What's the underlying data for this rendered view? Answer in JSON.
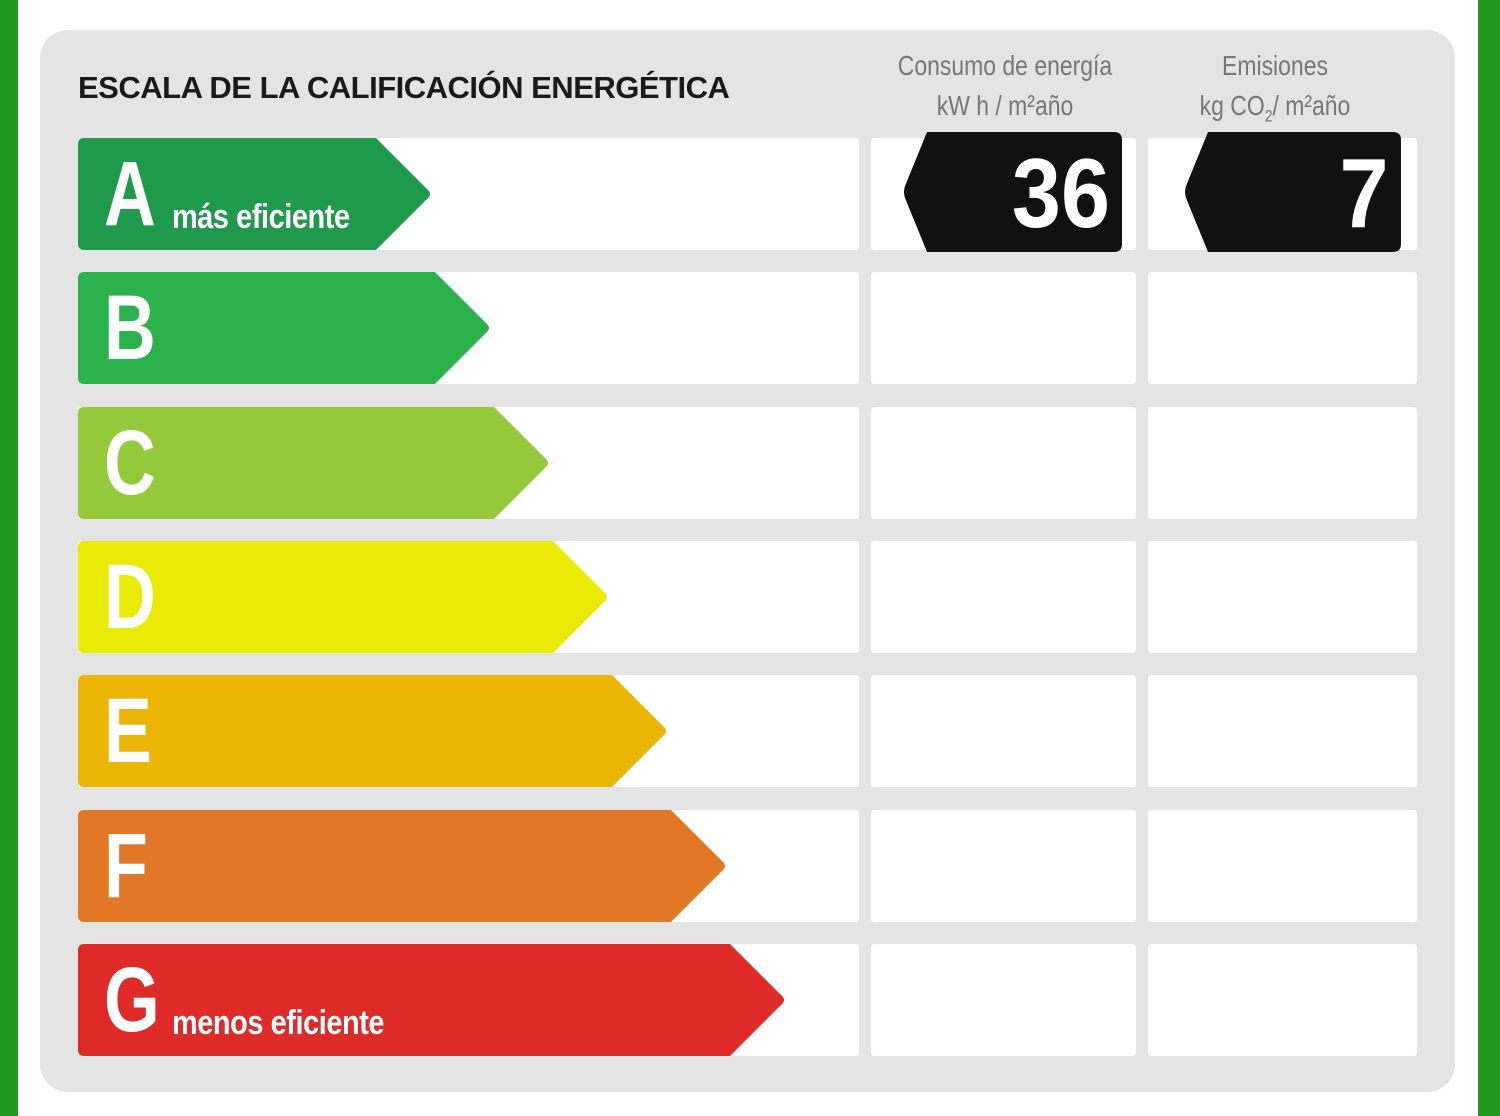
{
  "title": "ESCALA DE LA CALIFICACIÓN ENERGÉTICA",
  "columns": {
    "energy": {
      "line1": "Consumo de energía",
      "line2": "kW h / m²año"
    },
    "emissions": {
      "line1": "Emisiones",
      "line2_pre": "kg CO",
      "line2_sub": "2",
      "line2_post": "/ m²año"
    }
  },
  "ratings": [
    {
      "letter": "A",
      "sublabel": "más eficiente",
      "color": "#1f9a4d"
    },
    {
      "letter": "B",
      "sublabel": "",
      "color": "#2bb24c"
    },
    {
      "letter": "C",
      "sublabel": "",
      "color": "#94c93b"
    },
    {
      "letter": "D",
      "sublabel": "",
      "color": "#e9ea05"
    },
    {
      "letter": "E",
      "sublabel": "",
      "color": "#ebb505"
    },
    {
      "letter": "F",
      "sublabel": "",
      "color": "#e27826"
    },
    {
      "letter": "G",
      "sublabel": "menos eficiente",
      "color": "#de2b28"
    }
  ],
  "result": {
    "energy": {
      "rating": "A",
      "value": "36"
    },
    "emissions": {
      "rating": "A",
      "value": "7"
    }
  },
  "colors": {
    "frame_border": "#1f9a1f",
    "panel": "#e4e4e4",
    "track": "#ffffff",
    "marker": "#111111"
  }
}
